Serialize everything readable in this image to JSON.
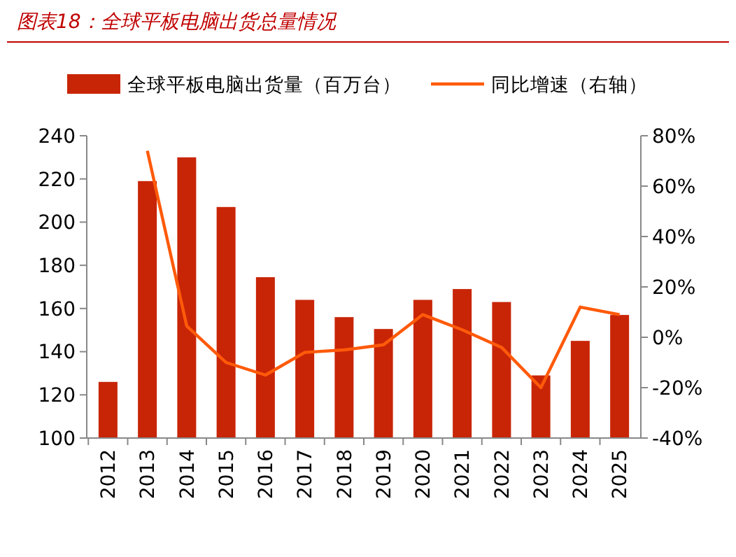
{
  "chart_data": {
    "type": "bar",
    "title": "图表18：全球平板电脑出货总量情况",
    "categories": [
      "2012",
      "2013",
      "2014",
      "2015",
      "2016",
      "2017",
      "2018",
      "2019",
      "2020",
      "2021",
      "2022",
      "2023",
      "2024",
      "2025"
    ],
    "series": [
      {
        "name": "全球平板电脑出货量（百万台）",
        "color": "#c82506",
        "values": [
          126,
          219,
          230,
          207,
          174.5,
          164,
          156,
          150.5,
          164,
          169,
          163,
          129,
          145,
          157
        ]
      },
      {
        "name": "同比增速（右轴）",
        "type": "line",
        "axis": "y2",
        "color": "#ff5a0a",
        "values": [
          null,
          74,
          4.5,
          -10,
          -15,
          -6,
          -5,
          -3,
          9,
          3,
          -4,
          -20,
          12,
          9
        ]
      }
    ],
    "ylim": [
      100,
      240
    ],
    "yticks": [
      100,
      120,
      140,
      160,
      180,
      200,
      220,
      240
    ],
    "y2lim": [
      -40,
      80
    ],
    "y2ticks": [
      {
        "value": -40,
        "label": "-40%"
      },
      {
        "value": -20,
        "label": "-20%"
      },
      {
        "value": 0,
        "label": "0%"
      },
      {
        "value": 20,
        "label": "20%"
      },
      {
        "value": 40,
        "label": "40%"
      },
      {
        "value": 60,
        "label": "60%"
      },
      {
        "value": 80,
        "label": "80%"
      }
    ],
    "legend": "top",
    "grid": false,
    "marker": "none",
    "line_style": "solid"
  }
}
